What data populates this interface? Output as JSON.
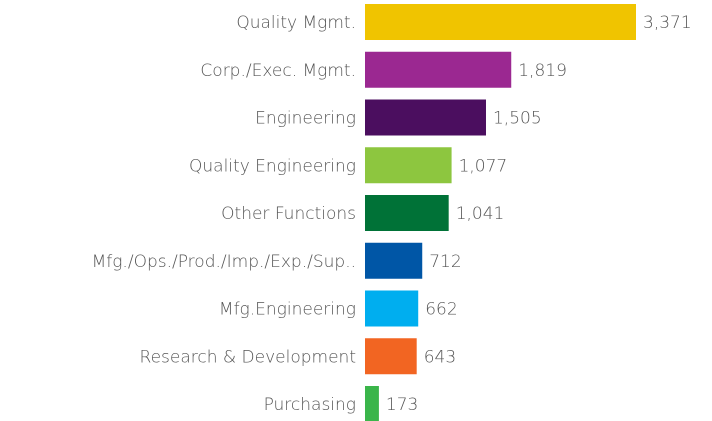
{
  "chart_data": {
    "type": "bar",
    "orientation": "horizontal",
    "categories": [
      "Quality Mgmt.",
      "Corp./Exec. Mgmt.",
      "Engineering",
      "Quality Engineering",
      "Other Functions",
      "Mfg./Ops./Prod./Imp./Exp./Sup..",
      "Mfg.Engineering",
      "Research & Development",
      "Purchasing"
    ],
    "values": [
      3371,
      1819,
      1505,
      1077,
      1041,
      712,
      662,
      643,
      173
    ],
    "value_labels": [
      "3,371",
      "1,819",
      "1,505",
      "1,077",
      "1,041",
      "712",
      "662",
      "643",
      "173"
    ],
    "colors": [
      "#f0c400",
      "#9b2891",
      "#4b0e5f",
      "#8dc63f",
      "#007237",
      "#0056a6",
      "#00aeef",
      "#f26522",
      "#3ab54a"
    ]
  }
}
